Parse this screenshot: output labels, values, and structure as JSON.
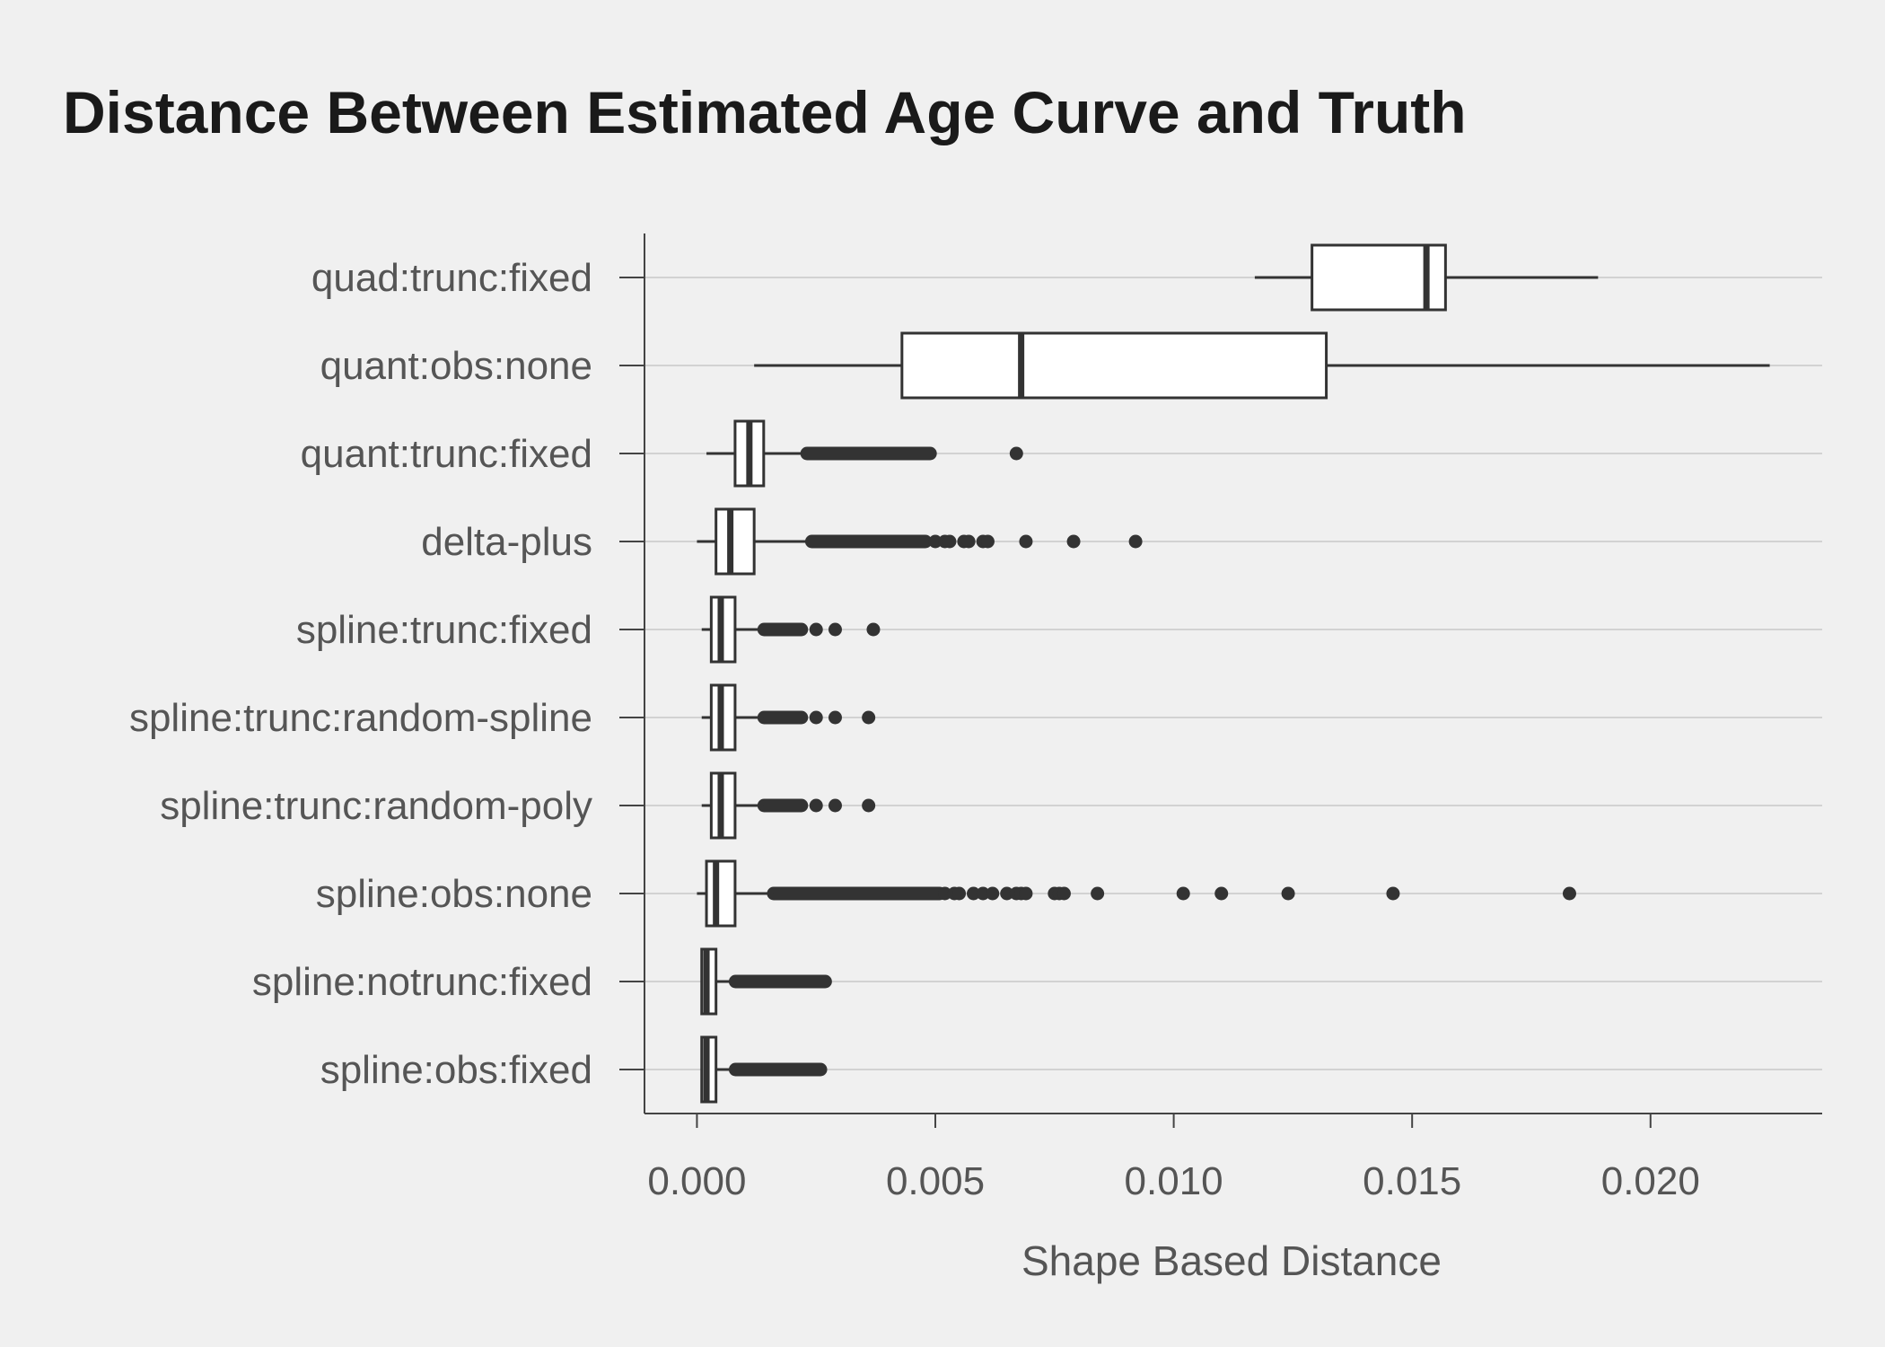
{
  "chart_data": {
    "type": "boxplot",
    "orientation": "horizontal",
    "title": "Distance Between Estimated Age Curve and Truth",
    "xlabel": "Shape Based Distance",
    "ylabel": "",
    "xlim": [
      -0.0011,
      0.0236
    ],
    "xticks": [
      0,
      0.005,
      0.01,
      0.015,
      0.02
    ],
    "xtick_labels": [
      "0.000",
      "0.005",
      "0.010",
      "0.015",
      "0.020"
    ],
    "grid": "horizontal",
    "legend": "none",
    "colors": {
      "background": "#f0f0f0",
      "box_fill": "#ffffff",
      "stroke": "#333333",
      "grid": "#d2d2d2",
      "axis": "#444444"
    },
    "categories": [
      "quad:trunc:fixed",
      "quant:obs:none",
      "quant:trunc:fixed",
      "delta-plus",
      "spline:trunc:fixed",
      "spline:trunc:random-spline",
      "spline:trunc:random-poly",
      "spline:obs:none",
      "spline:notrunc:fixed",
      "spline:obs:fixed"
    ],
    "boxes": [
      {
        "name": "quad:trunc:fixed",
        "whisker_low": 0.0117,
        "q1": 0.0129,
        "median": 0.0153,
        "q3": 0.0157,
        "whisker_high": 0.0189,
        "outlier_bands": [],
        "outliers": []
      },
      {
        "name": "quant:obs:none",
        "whisker_low": 0.0012,
        "q1": 0.0043,
        "median": 0.0068,
        "q3": 0.0132,
        "whisker_high": 0.0225,
        "outlier_bands": [],
        "outliers": []
      },
      {
        "name": "quant:trunc:fixed",
        "whisker_low": 0.0002,
        "q1": 0.0008,
        "median": 0.0011,
        "q3": 0.0014,
        "whisker_high": 0.0022,
        "outlier_bands": [
          [
            0.0023,
            0.0049
          ]
        ],
        "outliers": [
          0.0067
        ]
      },
      {
        "name": "delta-plus",
        "whisker_low": 0.0,
        "q1": 0.0004,
        "median": 0.0007,
        "q3": 0.0012,
        "whisker_high": 0.0023,
        "outlier_bands": [
          [
            0.0024,
            0.0048
          ]
        ],
        "outliers": [
          0.005,
          0.0052,
          0.0053,
          0.0056,
          0.0057,
          0.006,
          0.0061,
          0.0069,
          0.0079,
          0.0092
        ]
      },
      {
        "name": "spline:trunc:fixed",
        "whisker_low": 0.0001,
        "q1": 0.0003,
        "median": 0.0005,
        "q3": 0.0008,
        "whisker_high": 0.0014,
        "outlier_bands": [
          [
            0.0014,
            0.0022
          ]
        ],
        "outliers": [
          0.0025,
          0.0029,
          0.0037
        ]
      },
      {
        "name": "spline:trunc:random-spline",
        "whisker_low": 0.0001,
        "q1": 0.0003,
        "median": 0.0005,
        "q3": 0.0008,
        "whisker_high": 0.0014,
        "outlier_bands": [
          [
            0.0014,
            0.0022
          ]
        ],
        "outliers": [
          0.0025,
          0.0029,
          0.0036
        ]
      },
      {
        "name": "spline:trunc:random-poly",
        "whisker_low": 0.0001,
        "q1": 0.0003,
        "median": 0.0005,
        "q3": 0.0008,
        "whisker_high": 0.0014,
        "outlier_bands": [
          [
            0.0014,
            0.0022
          ]
        ],
        "outliers": [
          0.0025,
          0.0029,
          0.0036
        ]
      },
      {
        "name": "spline:obs:none",
        "whisker_low": 0.0,
        "q1": 0.0002,
        "median": 0.0004,
        "q3": 0.0008,
        "whisker_high": 0.0016,
        "outlier_bands": [
          [
            0.0016,
            0.0051
          ]
        ],
        "outliers": [
          0.0052,
          0.0054,
          0.0055,
          0.0058,
          0.006,
          0.0062,
          0.0065,
          0.0067,
          0.0068,
          0.0069,
          0.0075,
          0.0076,
          0.0077,
          0.0084,
          0.0102,
          0.011,
          0.0124,
          0.0146,
          0.0183
        ]
      },
      {
        "name": "spline:notrunc:fixed",
        "whisker_low": 0.0001,
        "q1": 0.0001,
        "median": 0.0002,
        "q3": 0.0004,
        "whisker_high": 0.0008,
        "outlier_bands": [
          [
            0.0008,
            0.0027
          ]
        ],
        "outliers": []
      },
      {
        "name": "spline:obs:fixed",
        "whisker_low": 0.0001,
        "q1": 0.0001,
        "median": 0.0002,
        "q3": 0.0004,
        "whisker_high": 0.0008,
        "outlier_bands": [
          [
            0.0008,
            0.0026
          ]
        ],
        "outliers": []
      }
    ]
  }
}
